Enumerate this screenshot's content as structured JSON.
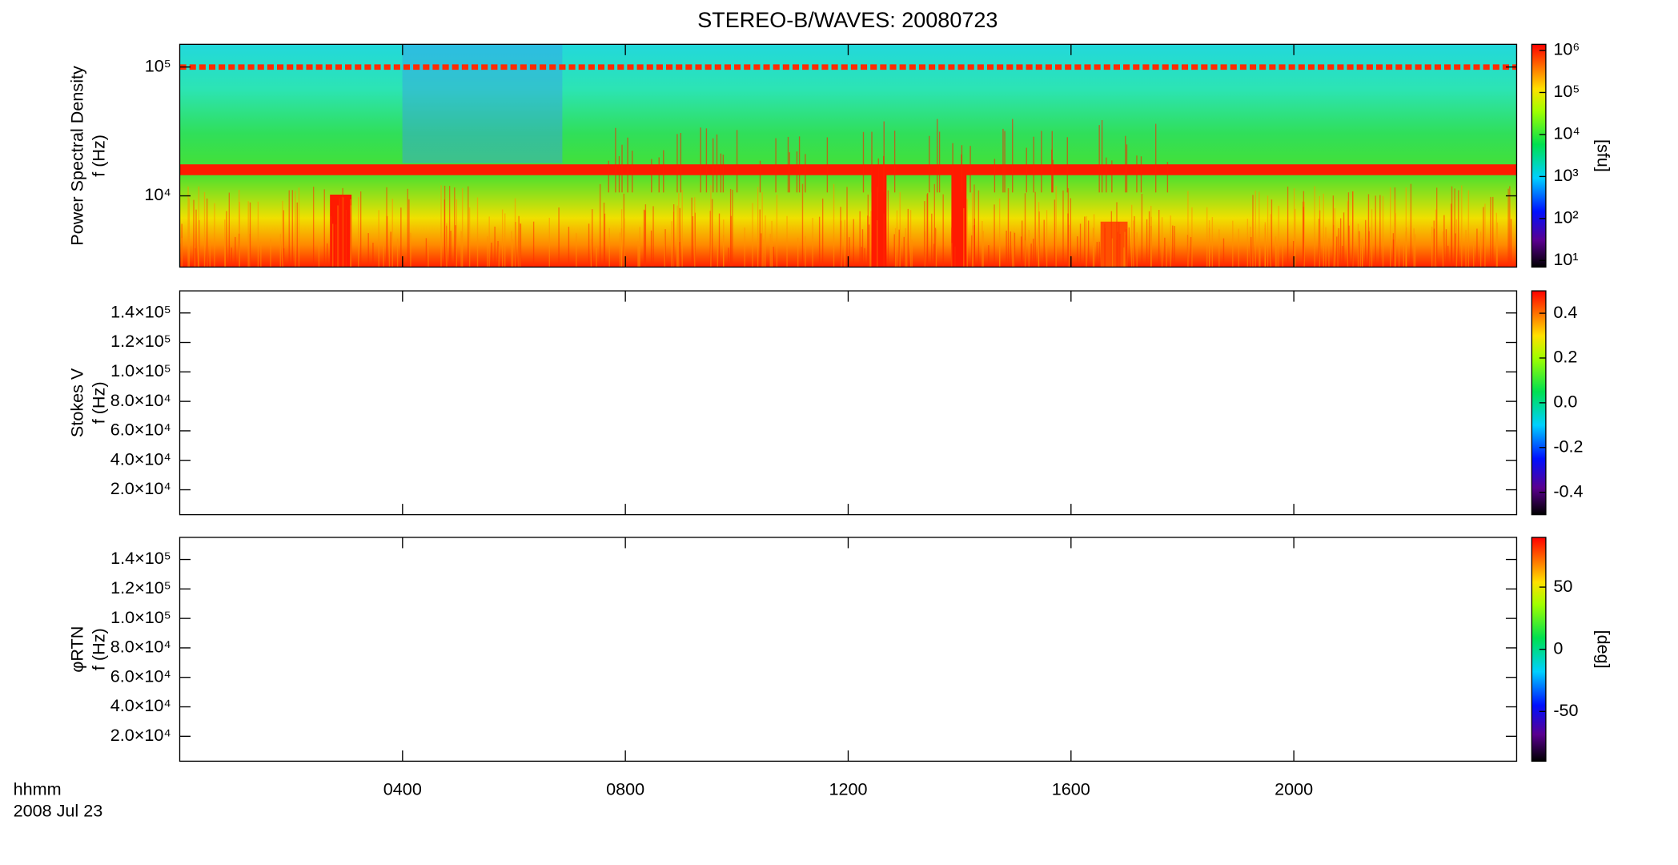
{
  "title": "STEREO-B/WAVES: 20080723",
  "chart_data": [
    {
      "type": "heatmap",
      "ylabel": [
        "Power Spectral Density",
        "f (Hz)"
      ],
      "ylog": true,
      "ylim": [
        2800,
        150000
      ],
      "yticks": [
        {
          "value": 10000,
          "label": "10⁴"
        },
        {
          "value": 100000,
          "label": "10⁵"
        }
      ],
      "zlog": true,
      "zlim": [
        7,
        1400000
      ],
      "zticks": [
        {
          "value": 10,
          "label": "10¹"
        },
        {
          "value": 100,
          "label": "10²"
        },
        {
          "value": 1000,
          "label": "10³"
        },
        {
          "value": 10000,
          "label": "10⁴"
        },
        {
          "value": 100000,
          "label": "10⁵"
        },
        {
          "value": 1000000,
          "label": "10⁶"
        }
      ],
      "zlabel": "[sfu]"
    },
    {
      "type": "heatmap",
      "ylabel": [
        "Stokes V",
        "f (Hz)"
      ],
      "ylim": [
        3100,
        155000
      ],
      "yticks": [
        {
          "value": 20000,
          "label": "2.0×10⁴"
        },
        {
          "value": 40000,
          "label": "4.0×10⁴"
        },
        {
          "value": 60000,
          "label": "6.0×10⁴"
        },
        {
          "value": 80000,
          "label": "8.0×10⁴"
        },
        {
          "value": 100000,
          "label": "1.0×10⁵"
        },
        {
          "value": 120000,
          "label": "1.2×10⁵"
        },
        {
          "value": 140000,
          "label": "1.4×10⁵"
        }
      ],
      "zlim": [
        -0.5,
        0.5
      ],
      "zticks": [
        -0.4,
        -0.2,
        {
          "value": 0,
          "label": "0.0"
        },
        0.2,
        0.4
      ]
    },
    {
      "type": "heatmap",
      "ylabel": [
        "φRTN",
        "f (Hz)"
      ],
      "ylim": [
        3100,
        155000
      ],
      "yticks": [
        {
          "value": 20000,
          "label": "2.0×10⁴"
        },
        {
          "value": 40000,
          "label": "4.0×10⁴"
        },
        {
          "value": 60000,
          "label": "6.0×10⁴"
        },
        {
          "value": 80000,
          "label": "8.0×10⁴"
        },
        {
          "value": 100000,
          "label": "1.0×10⁵"
        },
        {
          "value": 120000,
          "label": "1.2×10⁵"
        },
        {
          "value": 140000,
          "label": "1.4×10⁵"
        }
      ],
      "zlim": [
        -90,
        90
      ],
      "zticks": [
        -50,
        0,
        50
      ],
      "zlabel": "[deg]",
      "xlabel": "hhmm",
      "date": "2008 Jul 23",
      "xlim": [
        0,
        24
      ],
      "xticks": [
        {
          "value": 4,
          "label": "0400"
        },
        {
          "value": 8,
          "label": "0800"
        },
        {
          "value": 12,
          "label": "1200"
        },
        {
          "value": 16,
          "label": "1600"
        },
        {
          "value": 20,
          "label": "2000"
        }
      ]
    }
  ]
}
